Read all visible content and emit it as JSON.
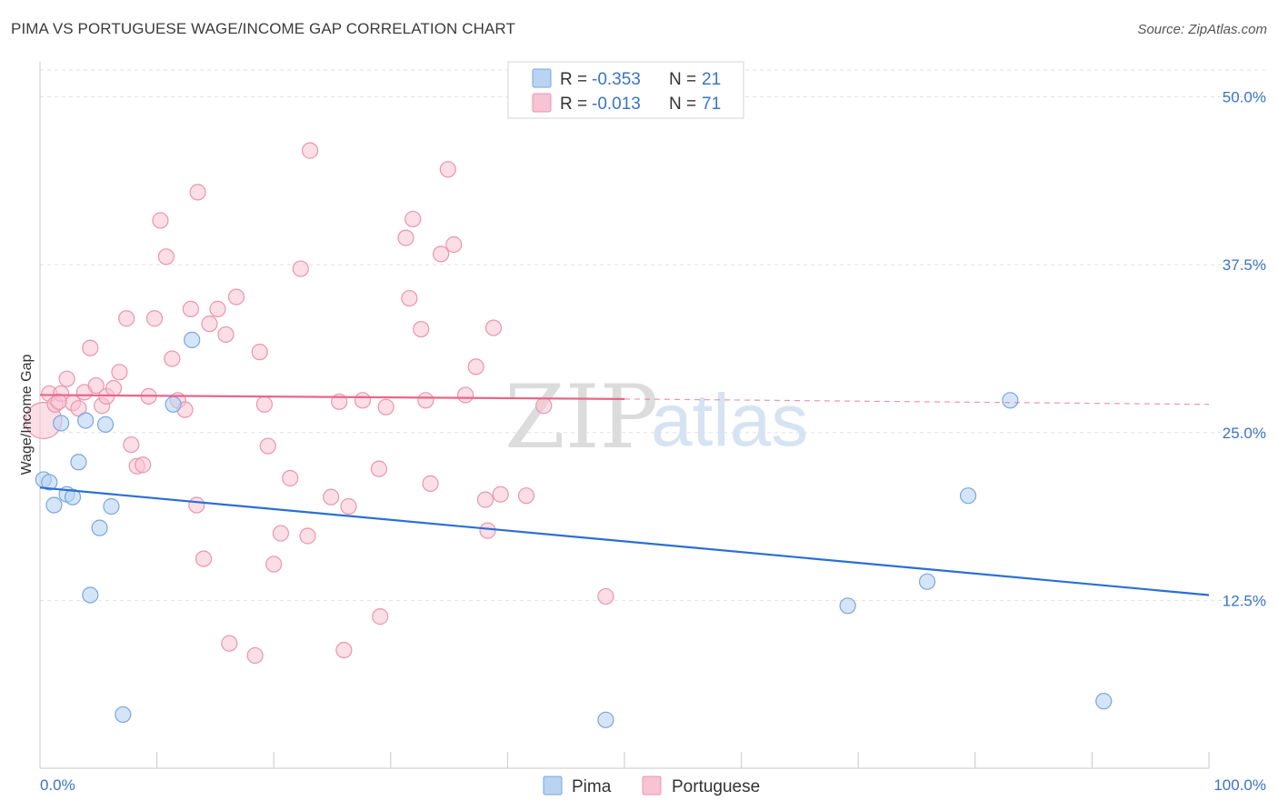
{
  "title": "PIMA VS PORTUGUESE WAGE/INCOME GAP CORRELATION CHART",
  "source": "Source: ZipAtlas.com",
  "watermark": {
    "zip": "ZIP",
    "atlas": "atlas"
  },
  "legend_box": [
    {
      "r_label": "R =",
      "r_value": "-0.353",
      "n_label": "N =",
      "n_value": "21"
    },
    {
      "r_label": "R =",
      "r_value": "-0.013",
      "n_label": "N =",
      "n_value": "71"
    }
  ],
  "colors": {
    "pima_fill": "#b9d3f3",
    "pima_stroke": "#7aa6de",
    "pima_line": "#2a6fd4",
    "port_fill": "#f8c3d2",
    "port_stroke": "#e896b0",
    "port_line": "#e8668e",
    "tick_text": "#3a74c6"
  },
  "chart_data": {
    "type": "scatter",
    "title": "PIMA VS PORTUGUESE WAGE/INCOME GAP CORRELATION CHART",
    "xlabel": "",
    "ylabel": "Wage/Income Gap",
    "xlim": [
      0,
      100
    ],
    "ylim": [
      0,
      52
    ],
    "x_tick_labels": [
      "0.0%",
      "100.0%"
    ],
    "y_ticks": [
      12.5,
      25.0,
      37.5,
      50.0
    ],
    "y_tick_labels": [
      "12.5%",
      "25.0%",
      "37.5%",
      "50.0%"
    ],
    "series": [
      {
        "name": "Pima",
        "points": [
          [
            0.3,
            21.5
          ],
          [
            0.8,
            21.3
          ],
          [
            1.2,
            19.6
          ],
          [
            1.8,
            25.7
          ],
          [
            2.3,
            20.4
          ],
          [
            2.8,
            20.2
          ],
          [
            3.3,
            22.8
          ],
          [
            3.9,
            25.9
          ],
          [
            4.3,
            12.9
          ],
          [
            5.1,
            17.9
          ],
          [
            5.6,
            25.6
          ],
          [
            6.1,
            19.5
          ],
          [
            7.1,
            4.0
          ],
          [
            11.4,
            27.1
          ],
          [
            13.0,
            31.9
          ],
          [
            48.4,
            3.6
          ],
          [
            69.1,
            12.1
          ],
          [
            75.9,
            13.9
          ],
          [
            79.4,
            20.3
          ],
          [
            83.0,
            27.4
          ],
          [
            91.0,
            5.0
          ]
        ],
        "trend": {
          "x": [
            0,
            100
          ],
          "y": [
            20.9,
            12.9
          ]
        }
      },
      {
        "name": "Portuguese",
        "points": [
          [
            0.3,
            25.9
          ],
          [
            0.8,
            27.9
          ],
          [
            1.3,
            27.1
          ],
          [
            1.8,
            27.9
          ],
          [
            2.3,
            29.0
          ],
          [
            2.8,
            27.2
          ],
          [
            3.3,
            26.8
          ],
          [
            3.8,
            28.0
          ],
          [
            4.3,
            31.3
          ],
          [
            4.8,
            28.5
          ],
          [
            5.3,
            27.0
          ],
          [
            5.7,
            27.7
          ],
          [
            6.3,
            28.3
          ],
          [
            6.8,
            29.5
          ],
          [
            7.4,
            33.5
          ],
          [
            7.8,
            24.1
          ],
          [
            8.3,
            22.5
          ],
          [
            8.8,
            22.6
          ],
          [
            9.3,
            27.7
          ],
          [
            9.8,
            33.5
          ],
          [
            10.3,
            40.8
          ],
          [
            10.8,
            38.1
          ],
          [
            11.3,
            30.5
          ],
          [
            11.8,
            27.4
          ],
          [
            12.4,
            26.7
          ],
          [
            12.9,
            34.2
          ],
          [
            13.4,
            19.6
          ],
          [
            13.5,
            42.9
          ],
          [
            14.0,
            15.6
          ],
          [
            14.5,
            33.1
          ],
          [
            15.2,
            34.2
          ],
          [
            15.9,
            32.3
          ],
          [
            16.2,
            9.3
          ],
          [
            16.8,
            35.1
          ],
          [
            18.4,
            8.4
          ],
          [
            18.8,
            31.0
          ],
          [
            19.2,
            27.1
          ],
          [
            19.5,
            24.0
          ],
          [
            20.0,
            15.2
          ],
          [
            20.6,
            17.5
          ],
          [
            21.4,
            21.6
          ],
          [
            22.3,
            37.2
          ],
          [
            22.9,
            17.3
          ],
          [
            23.1,
            46.0
          ],
          [
            24.9,
            20.2
          ],
          [
            25.6,
            27.3
          ],
          [
            26.0,
            8.8
          ],
          [
            26.4,
            19.5
          ],
          [
            27.6,
            27.4
          ],
          [
            29.0,
            22.3
          ],
          [
            29.1,
            11.3
          ],
          [
            29.6,
            26.9
          ],
          [
            31.3,
            39.5
          ],
          [
            31.6,
            35.0
          ],
          [
            31.9,
            40.9
          ],
          [
            32.6,
            32.7
          ],
          [
            33.0,
            27.4
          ],
          [
            33.4,
            21.2
          ],
          [
            34.3,
            38.3
          ],
          [
            34.9,
            44.6
          ],
          [
            35.4,
            39.0
          ],
          [
            36.4,
            27.8
          ],
          [
            37.3,
            29.9
          ],
          [
            38.1,
            20.0
          ],
          [
            38.3,
            17.7
          ],
          [
            38.8,
            32.8
          ],
          [
            39.4,
            20.4
          ],
          [
            41.6,
            20.3
          ],
          [
            43.1,
            27.0
          ],
          [
            48.4,
            12.8
          ],
          [
            1.6,
            27.3
          ]
        ],
        "trend_solid": {
          "x": [
            0,
            50
          ],
          "y": [
            27.8,
            27.5
          ]
        },
        "trend_dashed": {
          "x": [
            50,
            100
          ],
          "y": [
            27.5,
            27.1
          ]
        }
      }
    ],
    "legend": [
      "Pima",
      "Portuguese"
    ],
    "legend_position": "bottom-center"
  }
}
